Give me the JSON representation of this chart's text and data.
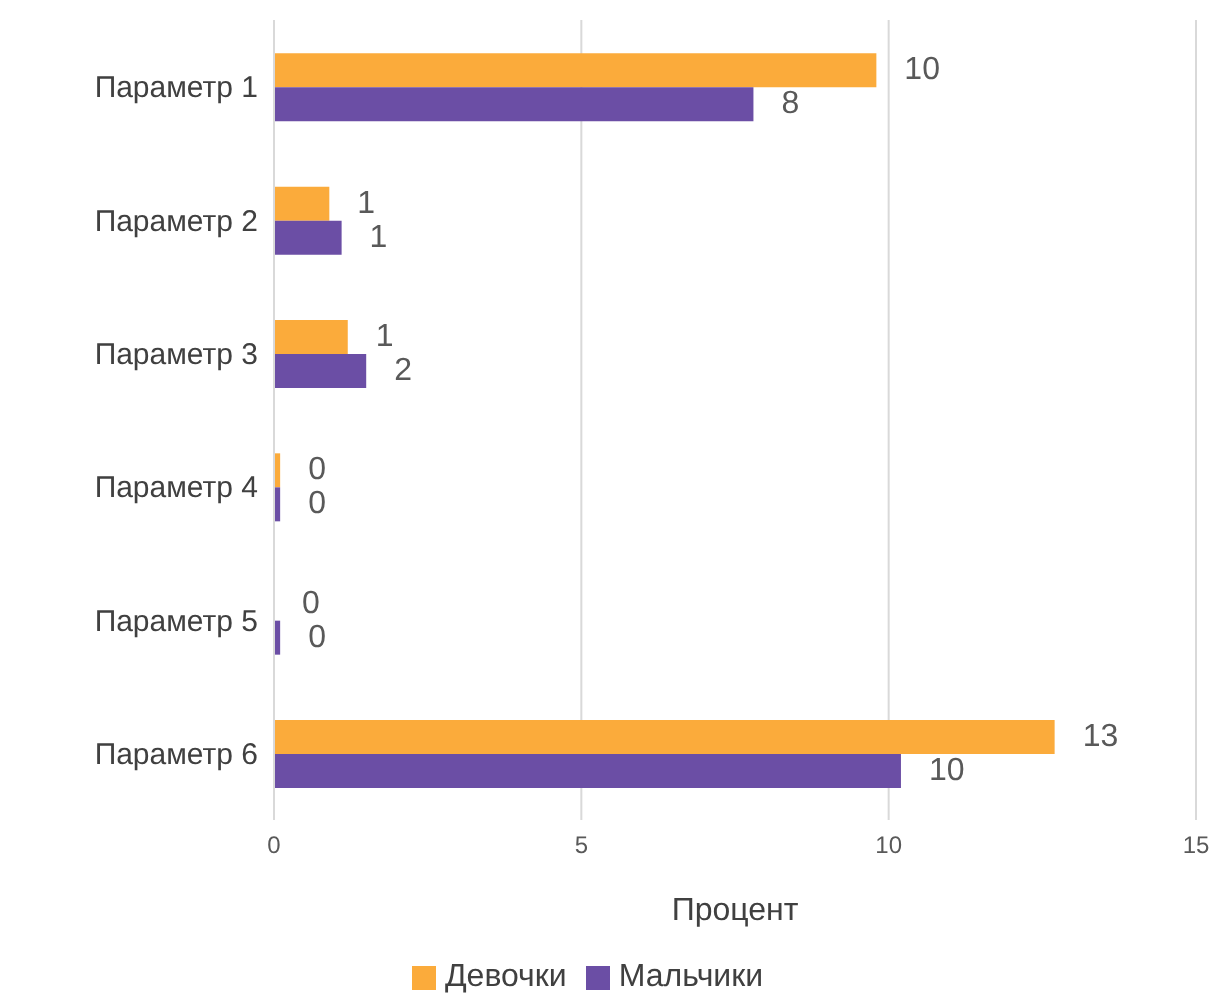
{
  "chart_data": {
    "type": "bar",
    "orientation": "horizontal",
    "xlabel": "Процент",
    "categories": [
      "Параметр 1",
      "Параметр 2",
      "Параметр 3",
      "Параметр 4",
      "Параметр 5",
      "Параметр 6"
    ],
    "series": [
      {
        "name": "Девочки",
        "color": "#fbab3b",
        "values": [
          9.8,
          0.9,
          1.2,
          0.1,
          0,
          12.7
        ],
        "value_labels": [
          "10",
          "1",
          "1",
          "0",
          "0",
          "13"
        ]
      },
      {
        "name": "Мальчики",
        "color": "#6b4ea5",
        "values": [
          7.8,
          1.1,
          1.5,
          0.1,
          0.1,
          10.2
        ],
        "value_labels": [
          "8",
          "1",
          "2",
          "0",
          "0",
          "10"
        ]
      }
    ],
    "xlim": [
      0,
      15
    ],
    "xticks": [
      0,
      5,
      10,
      15
    ],
    "grid": "x",
    "legend": "bottom"
  }
}
